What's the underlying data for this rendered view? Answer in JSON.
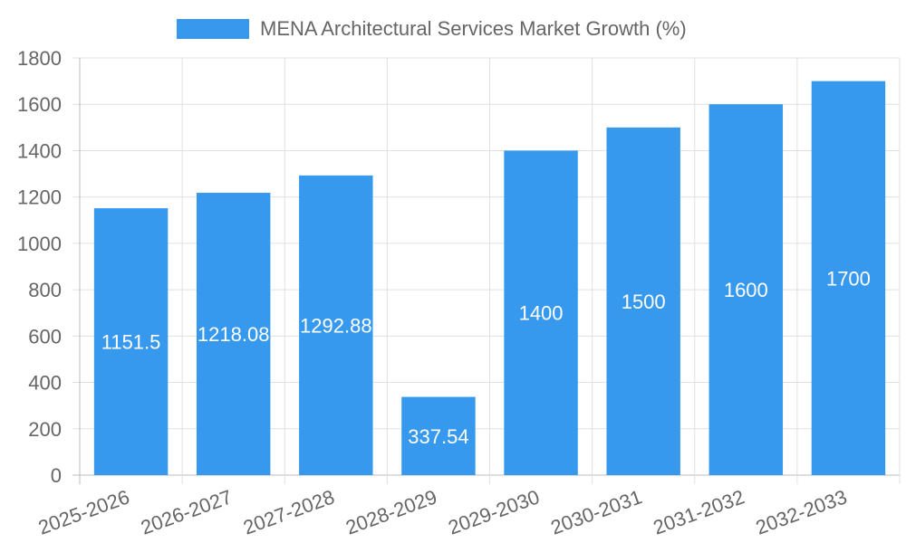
{
  "chart_data": {
    "type": "bar",
    "title": "",
    "xlabel": "",
    "ylabel": "",
    "categories": [
      "2025-2026",
      "2026-2027",
      "2027-2028",
      "2028-2029",
      "2029-2030",
      "2030-2031",
      "2031-2032",
      "2032-2033"
    ],
    "series": [
      {
        "name": "MENA Architectural Services Market Growth (%)",
        "values": [
          1151.5,
          1218.08,
          1292.88,
          337.54,
          1400,
          1500,
          1600,
          1700
        ],
        "color": "#3799ee"
      }
    ],
    "data_labels": [
      "1151.5",
      "1218.08",
      "1292.88",
      "337.54",
      "1400",
      "1500",
      "1600",
      "1700"
    ],
    "ylim": [
      0,
      1800
    ],
    "y_ticks": [
      0,
      200,
      400,
      600,
      800,
      1000,
      1200,
      1400,
      1600,
      1800
    ],
    "y_tick_labels": [
      "0",
      "200",
      "400",
      "600",
      "800",
      "1000",
      "1200",
      "1400",
      "1600",
      "1800"
    ],
    "grid": true,
    "legend": {
      "position": "top-center",
      "entries": [
        "MENA Architectural Services Market Growth (%)"
      ]
    }
  }
}
